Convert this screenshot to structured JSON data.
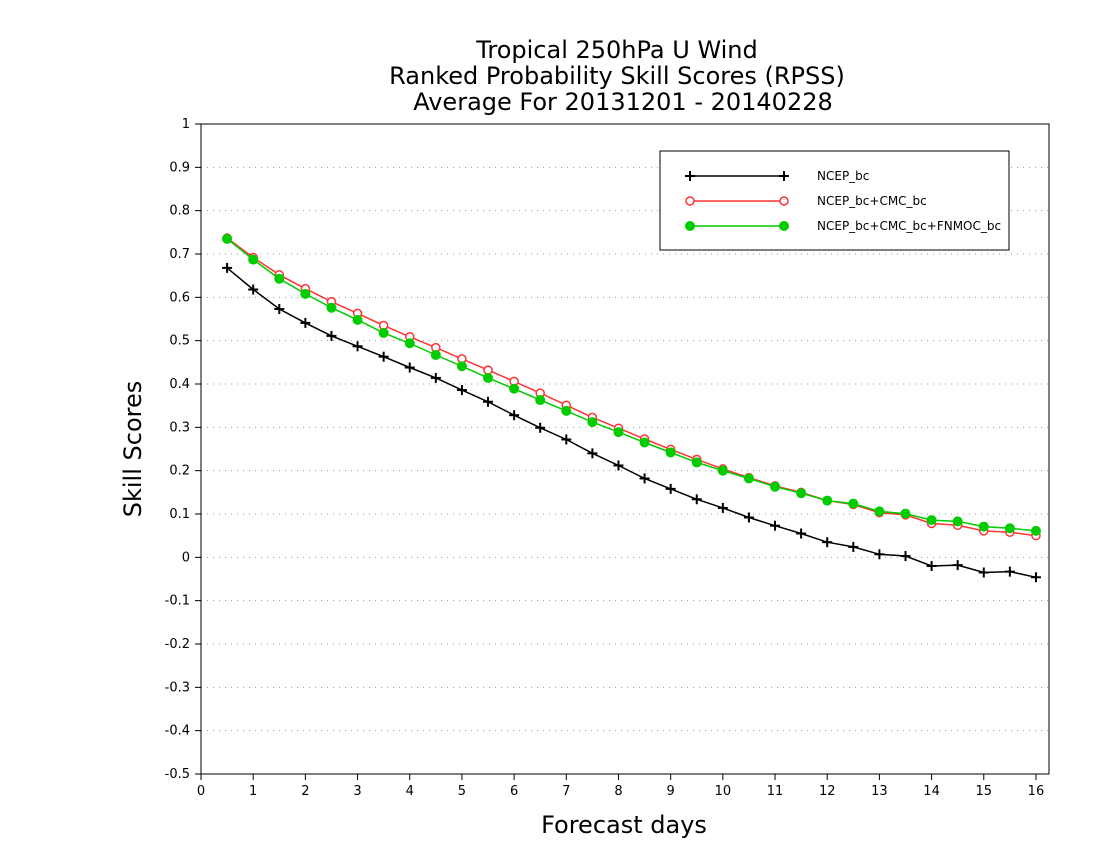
{
  "chart_data": {
    "type": "line",
    "title_lines": [
      "Tropical 250hPa U Wind",
      "Ranked Probability Skill Scores (RPSS)",
      "Average For 20131201 - 20140228"
    ],
    "xlabel": "Forecast days",
    "ylabel": "Skill Scores",
    "xlim": [
      0,
      16.25
    ],
    "ylim": [
      -0.5,
      1
    ],
    "xticks": [
      "0",
      "1",
      "2",
      "3",
      "4",
      "5",
      "6",
      "7",
      "8",
      "9",
      "10",
      "11",
      "12",
      "13",
      "14",
      "15",
      "16"
    ],
    "yticks": [
      "1",
      "0.9",
      "0.8",
      "0.7",
      "0.6",
      "0.5",
      "0.4",
      "0.3",
      "0.2",
      "0.1",
      "0",
      "-0.1",
      "-0.2",
      "-0.3",
      "-0.4",
      "-0.5"
    ],
    "grid": "horizontal dotted",
    "legend_position": "top-right",
    "x": [
      0.5,
      1,
      1.5,
      2,
      2.5,
      3,
      3.5,
      4,
      4.5,
      5,
      5.5,
      6,
      6.5,
      7,
      7.5,
      8,
      8.5,
      9,
      9.5,
      10,
      10.5,
      11,
      11.5,
      12,
      12.5,
      13,
      13.5,
      14,
      14.5,
      15,
      15.5,
      16
    ],
    "series": [
      {
        "name": "NCEP_bc",
        "color": "#000000",
        "marker": "plus",
        "values": [
          0.668,
          0.618,
          0.573,
          0.541,
          0.511,
          0.487,
          0.463,
          0.438,
          0.414,
          0.386,
          0.359,
          0.328,
          0.299,
          0.272,
          0.24,
          0.212,
          0.182,
          0.158,
          0.134,
          0.114,
          0.092,
          0.073,
          0.055,
          0.035,
          0.024,
          0.007,
          0.003,
          -0.02,
          -0.018,
          -0.035,
          -0.033,
          -0.046
        ]
      },
      {
        "name": "NCEP_bc+CMC_bc",
        "color": "#ff3333",
        "marker": "open-circle",
        "values": [
          0.737,
          0.692,
          0.652,
          0.62,
          0.59,
          0.563,
          0.535,
          0.509,
          0.484,
          0.458,
          0.432,
          0.406,
          0.379,
          0.351,
          0.323,
          0.298,
          0.273,
          0.249,
          0.226,
          0.204,
          0.184,
          0.165,
          0.15,
          0.131,
          0.122,
          0.103,
          0.098,
          0.078,
          0.074,
          0.061,
          0.058,
          0.05
        ]
      },
      {
        "name": "NCEP_bc+CMC_bc+FNMOC_bc",
        "color": "#00cc00",
        "marker": "filled-circle",
        "values": [
          0.735,
          0.687,
          0.643,
          0.608,
          0.576,
          0.548,
          0.518,
          0.494,
          0.467,
          0.441,
          0.414,
          0.389,
          0.363,
          0.338,
          0.312,
          0.289,
          0.265,
          0.242,
          0.219,
          0.2,
          0.182,
          0.163,
          0.148,
          0.131,
          0.124,
          0.106,
          0.101,
          0.086,
          0.083,
          0.071,
          0.067,
          0.061
        ]
      }
    ]
  }
}
